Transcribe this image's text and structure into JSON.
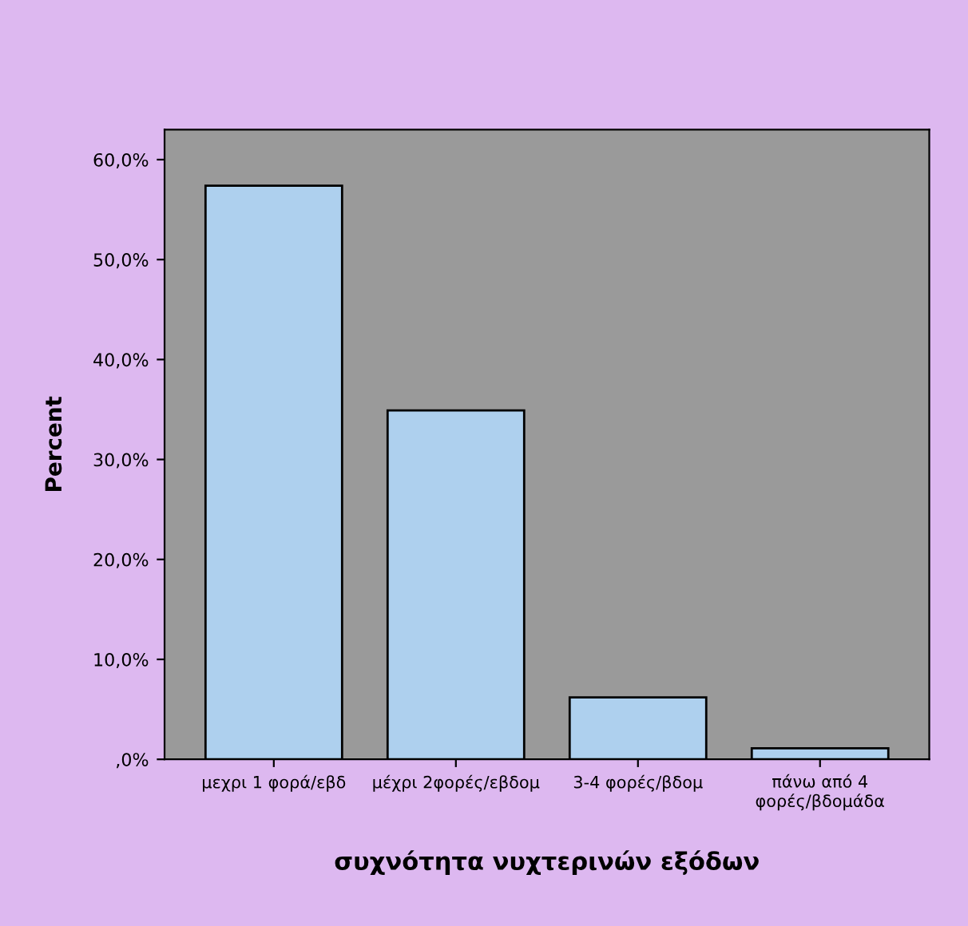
{
  "chart_data": {
    "type": "bar",
    "xlabel": "συχνότητα νυχτερινών εξόδων",
    "ylabel": "Percent",
    "categories": [
      "μεχρι 1 φορά/εβδ",
      "μέχρι 2φορές/εβδομ",
      "3-4 φορές/βδομ",
      "πάνω από 4\nφορές/βδομάδα"
    ],
    "values": [
      57.4,
      34.9,
      6.2,
      1.1
    ],
    "color": "#aed0ee",
    "ylim": [
      0,
      63
    ],
    "yticks": [
      {
        "value": 0,
        "label": ",0%"
      },
      {
        "value": 10,
        "label": "10,0%"
      },
      {
        "value": 20,
        "label": "20,0%"
      },
      {
        "value": 30,
        "label": "30,0%"
      },
      {
        "value": 40,
        "label": "40,0%"
      },
      {
        "value": 50,
        "label": "50,0%"
      },
      {
        "value": 60,
        "label": "60,0%"
      }
    ],
    "grid": false
  }
}
